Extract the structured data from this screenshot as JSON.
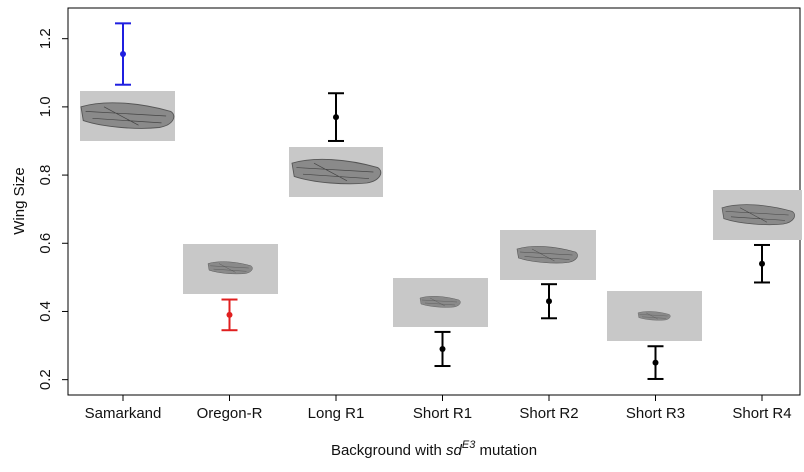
{
  "chart_data": {
    "type": "errorbar",
    "y_label": "Wing Size",
    "x_label": {
      "before": "Background with ",
      "italic": "sd",
      "sup": "E3",
      "after": " mutation"
    },
    "categories": [
      "Samarkand",
      "Oregon-R",
      "Long R1",
      "Short R1",
      "Short R2",
      "Short R3",
      "Short R4"
    ],
    "values": [
      1.155,
      0.39,
      0.97,
      0.29,
      0.43,
      0.25,
      0.54
    ],
    "errors": [
      0.09,
      0.045,
      0.07,
      0.05,
      0.05,
      0.048,
      0.055
    ],
    "colors": [
      "#1f1fe0",
      "#e01f1f",
      "#000000",
      "#000000",
      "#000000",
      "#000000",
      "#000000"
    ],
    "ylim": [
      0.155,
      1.29
    ],
    "yticks": [
      0.2,
      0.4,
      0.6,
      0.8,
      {
        "value": 1,
        "label": "1.0"
      },
      1.2
    ]
  }
}
